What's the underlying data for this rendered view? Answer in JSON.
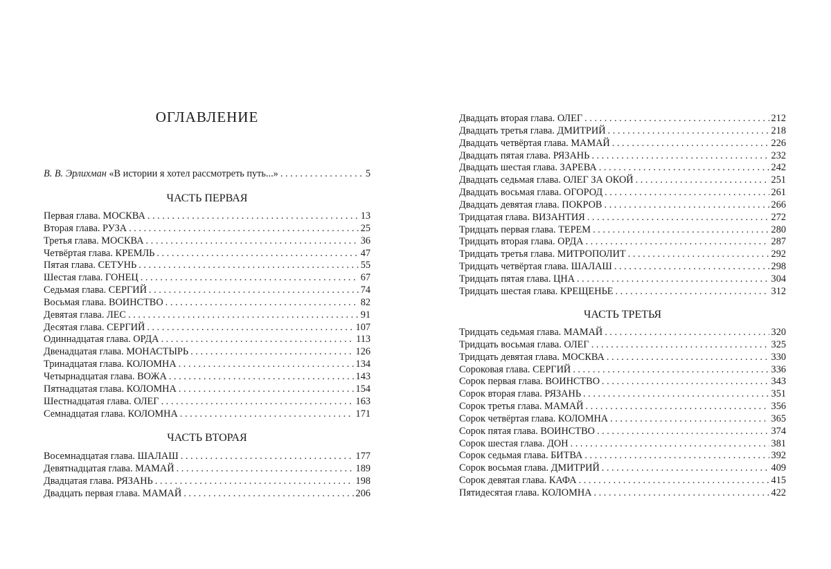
{
  "title": "ОГЛАВЛЕНИЕ",
  "intro": {
    "author": "В. В. Эрлихман",
    "text": "«В истории я хотел рассмотреть путь...»",
    "page": "5"
  },
  "parts": [
    {
      "heading": "ЧАСТЬ ПЕРВАЯ",
      "entries": [
        {
          "t": "Первая глава. МОСКВА",
          "p": "13"
        },
        {
          "t": "Вторая глава. РУЗА",
          "p": "25"
        },
        {
          "t": "Третья глава. МОСКВА",
          "p": "36"
        },
        {
          "t": "Четвёртая глава. КРЕМЛЬ",
          "p": "47"
        },
        {
          "t": "Пятая глава. СЕТУНЬ",
          "p": "55"
        },
        {
          "t": "Шестая глава. ГОНЕЦ",
          "p": "67"
        },
        {
          "t": "Седьмая глава. СЕРГИЙ",
          "p": "74"
        },
        {
          "t": "Восьмая глава. ВОИНСТВО",
          "p": "82"
        },
        {
          "t": "Девятая глава. ЛЕС",
          "p": "91"
        },
        {
          "t": "Десятая глава. СЕРГИЙ",
          "p": "107"
        },
        {
          "t": "Одиннадцатая глава. ОРДА",
          "p": "113"
        },
        {
          "t": "Двенадцатая глава. МОНАСТЫРЬ",
          "p": "126"
        },
        {
          "t": "Тринадцатая глава. КОЛОМНА",
          "p": "134"
        },
        {
          "t": "Четырнадцатая глава. ВОЖА",
          "p": "143"
        },
        {
          "t": "Пятнадцатая глава. КОЛОМНА",
          "p": "154"
        },
        {
          "t": "Шестнадцатая глава. ОЛЕГ",
          "p": "163"
        },
        {
          "t": "Семнадцатая глава. КОЛОМНА",
          "p": "171"
        }
      ]
    },
    {
      "heading": "ЧАСТЬ ВТОРАЯ",
      "entries": [
        {
          "t": "Восемнадцатая глава. ШАЛАШ",
          "p": "177"
        },
        {
          "t": "Девятнадцатая глава. МАМАЙ",
          "p": "189"
        },
        {
          "t": "Двадцатая глава. РЯЗАНЬ",
          "p": "198"
        },
        {
          "t": "Двадцать первая глава. МАМАЙ",
          "p": "206"
        }
      ]
    },
    {
      "heading": "",
      "entries": [
        {
          "t": "Двадцать вторая глава. ОЛЕГ",
          "p": "212"
        },
        {
          "t": "Двадцать третья глава. ДМИТРИЙ",
          "p": "218"
        },
        {
          "t": "Двадцать четвёртая глава. МАМАЙ",
          "p": "226"
        },
        {
          "t": "Двадцать пятая глава. РЯЗАНЬ",
          "p": "232"
        },
        {
          "t": "Двадцать шестая глава. ЗАРЕВА",
          "p": "242"
        },
        {
          "t": "Двадцать седьмая глава. ОЛЕГ ЗА ОКОЙ",
          "p": "251"
        },
        {
          "t": "Двадцать восьмая глава. ОГОРОД",
          "p": "261"
        },
        {
          "t": "Двадцать девятая глава. ПОКРОВ",
          "p": "266"
        },
        {
          "t": "Тридцатая глава. ВИЗАНТИЯ",
          "p": "272"
        },
        {
          "t": "Тридцать первая глава. ТЕРЕМ",
          "p": "280"
        },
        {
          "t": "Тридцать вторая глава. ОРДА",
          "p": "287"
        },
        {
          "t": "Тридцать третья глава. МИТРОПОЛИТ",
          "p": "292"
        },
        {
          "t": "Тридцать четвёртая глава. ШАЛАШ",
          "p": "298"
        },
        {
          "t": "Тридцать пятая глава. ЦНА",
          "p": "304"
        },
        {
          "t": "Тридцать шестая глава. КРЕЩЕНЬЕ",
          "p": "312"
        }
      ]
    },
    {
      "heading": "ЧАСТЬ ТРЕТЬЯ",
      "entries": [
        {
          "t": "Тридцать седьмая глава. МАМАЙ",
          "p": "320"
        },
        {
          "t": "Тридцать восьмая глава. ОЛЕГ",
          "p": "325"
        },
        {
          "t": "Тридцать девятая глава. МОСКВА",
          "p": "330"
        },
        {
          "t": "Сороковая глава. СЕРГИЙ",
          "p": "336"
        },
        {
          "t": "Сорок первая глава. ВОИНСТВО",
          "p": "343"
        },
        {
          "t": "Сорок вторая глава. РЯЗАНЬ",
          "p": "351"
        },
        {
          "t": "Сорок третья глава. МАМАЙ",
          "p": "356"
        },
        {
          "t": "Сорок четвёртая глава. КОЛОМНА",
          "p": "365"
        },
        {
          "t": "Сорок пятая глава. ВОИНСТВО",
          "p": "374"
        },
        {
          "t": "Сорок шестая глава. ДОН",
          "p": "381"
        },
        {
          "t": "Сорок седьмая глава. БИТВА",
          "p": "392"
        },
        {
          "t": "Сорок восьмая глава. ДМИТРИЙ",
          "p": "409"
        },
        {
          "t": "Сорок девятая глава. КАФА",
          "p": "415"
        },
        {
          "t": "Пятидесятая глава. КОЛОМНА",
          "p": "422"
        }
      ]
    }
  ]
}
